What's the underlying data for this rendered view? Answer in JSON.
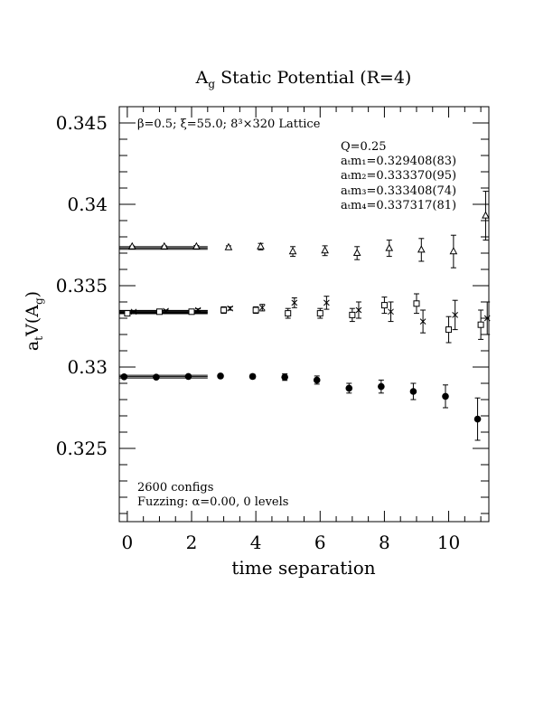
{
  "chart_data": {
    "type": "scatter",
    "title": "A",
    "title_sub": "g",
    "title_rest": " Static Potential (R=4)",
    "xlabel": "time separation",
    "ylabel": "a",
    "ylabel_sub1": "t",
    "ylabel_mid": "V(A",
    "ylabel_sub2": "g",
    "ylabel_end": ")",
    "xlim": [
      -0.25,
      11.25
    ],
    "ylim": [
      0.3205,
      0.346
    ],
    "xticks": [
      0,
      2,
      4,
      6,
      8,
      10
    ],
    "xtick_labels": [
      "0",
      "2",
      "4",
      "6",
      "8",
      "10"
    ],
    "yticks": [
      0.325,
      0.33,
      0.335,
      0.34,
      0.345
    ],
    "ytick_labels": [
      "0.325",
      "0.33",
      "0.335",
      "0.34",
      "0.345"
    ],
    "grid": false,
    "annotations": {
      "lattice": "β=0.5; ξ=55.0; 8³×320 Lattice",
      "q": "Q=0.25",
      "m1": "aₜm₁=0.329408(83)",
      "m2": "aₜm₂=0.333370(95)",
      "m3": "aₜm₃=0.333408(74)",
      "m4": "aₜm₄=0.337317(81)",
      "configs": "2600 configs",
      "fuzzing": "Fuzzing: α=0.00, 0 levels"
    },
    "fits": [
      {
        "value": 0.329408,
        "err": 8.3e-05,
        "x_range": [
          -0.25,
          2.5
        ]
      },
      {
        "value": 0.33337,
        "err": 9.5e-05,
        "x_range": [
          -0.25,
          2.5
        ]
      },
      {
        "value": 0.333408,
        "err": 7.4e-05,
        "x_range": [
          -0.25,
          2.5
        ]
      },
      {
        "value": 0.337317,
        "err": 8.1e-05,
        "x_range": [
          -0.25,
          2.5
        ]
      }
    ],
    "series": [
      {
        "marker": "circle-filled",
        "x": [
          -0.1,
          0.9,
          1.9,
          2.9,
          3.9,
          4.9,
          5.9,
          6.9,
          7.9,
          8.9,
          9.9,
          10.9
        ],
        "y": [
          0.3294,
          0.32938,
          0.32942,
          0.32945,
          0.32942,
          0.32938,
          0.3292,
          0.3287,
          0.3288,
          0.3285,
          0.3282,
          0.3268
        ],
        "err": [
          5e-05,
          6e-05,
          8e-05,
          0.0001,
          0.00013,
          0.0002,
          0.00025,
          0.0003,
          0.0004,
          0.0005,
          0.0007,
          0.0013
        ]
      },
      {
        "marker": "square-open",
        "x": [
          0.0,
          1.0,
          2.0,
          3.0,
          4.0,
          5.0,
          6.0,
          7.0,
          8.0,
          9.0,
          10.0,
          11.0
        ],
        "y": [
          0.3333,
          0.3334,
          0.3334,
          0.3335,
          0.3335,
          0.3333,
          0.3333,
          0.3332,
          0.3338,
          0.3339,
          0.3323,
          0.3326
        ],
        "err": [
          5e-05,
          6e-05,
          8e-05,
          0.0002,
          0.0002,
          0.0003,
          0.0003,
          0.0004,
          0.0005,
          0.0006,
          0.0008,
          0.0009
        ]
      },
      {
        "marker": "cross",
        "x": [
          0.2,
          1.2,
          2.2,
          3.2,
          4.2,
          5.2,
          6.2,
          7.2,
          8.2,
          9.2,
          10.2,
          11.2
        ],
        "y": [
          0.3334,
          0.33345,
          0.3335,
          0.3336,
          0.33365,
          0.33395,
          0.33395,
          0.3335,
          0.3334,
          0.3328,
          0.3332,
          0.333
        ],
        "err": [
          5e-05,
          6e-05,
          8e-05,
          0.0001,
          0.0002,
          0.0003,
          0.0004,
          0.0005,
          0.0006,
          0.0007,
          0.0009,
          0.001
        ]
      },
      {
        "marker": "triangle-open",
        "x": [
          0.15,
          1.15,
          2.15,
          3.15,
          4.15,
          5.15,
          6.15,
          7.15,
          8.15,
          9.15,
          10.15,
          11.15
        ],
        "y": [
          0.3374,
          0.3374,
          0.3374,
          0.33735,
          0.3374,
          0.3371,
          0.33715,
          0.337,
          0.3373,
          0.3372,
          0.3371,
          0.3393
        ],
        "err": [
          4e-05,
          5e-05,
          7e-05,
          0.0001,
          0.0002,
          0.0003,
          0.0003,
          0.0004,
          0.0005,
          0.0007,
          0.001,
          0.0015
        ]
      }
    ]
  }
}
